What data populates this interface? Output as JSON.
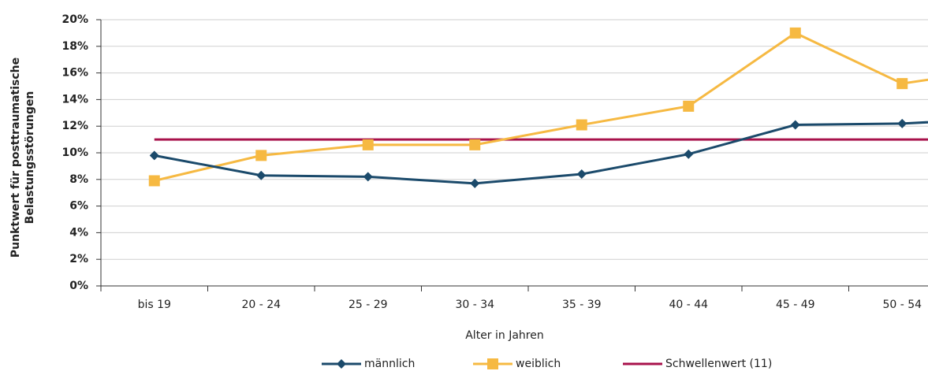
{
  "chart_data": {
    "type": "line",
    "ylabel": [
      "Punktwert für posttraumatische",
      "Belastungsstörungen"
    ],
    "xlabel": "Alter in Jahren",
    "categories": [
      "bis 19",
      "20 - 24",
      "25 - 29",
      "30 - 34",
      "35 - 39",
      "40 - 44",
      "45 - 49",
      "50 - 54",
      null
    ],
    "series": [
      {
        "name": "männlich",
        "color": "#1b4a6b",
        "marker": "diamond",
        "values": [
          9.8,
          8.3,
          8.2,
          7.7,
          8.4,
          9.9,
          12.1,
          12.2,
          12.6
        ]
      },
      {
        "name": "weiblich",
        "color": "#f6b942",
        "marker": "square",
        "values": [
          7.9,
          9.8,
          10.6,
          10.6,
          12.1,
          13.5,
          19.0,
          15.2,
          16.4
        ]
      },
      {
        "name": "Schwellenwert (11)",
        "color": "#a8124b",
        "marker": "none",
        "values": [
          11,
          11,
          11,
          11,
          11,
          11,
          11,
          11,
          11
        ]
      }
    ],
    "ylim": [
      0,
      20
    ],
    "yticks": [
      {
        "value": 0,
        "label": "0%"
      },
      {
        "value": 2,
        "label": "2%"
      },
      {
        "value": 4,
        "label": "4%"
      },
      {
        "value": 6,
        "label": "6%"
      },
      {
        "value": 8,
        "label": "8%"
      },
      {
        "value": 10,
        "label": "10%"
      },
      {
        "value": 12,
        "label": "12%"
      },
      {
        "value": 14,
        "label": "14%"
      },
      {
        "value": 16,
        "label": "16%"
      },
      {
        "value": 18,
        "label": "18%"
      },
      {
        "value": 20,
        "label": "20%"
      }
    ],
    "grid": true,
    "legend": "bottom"
  }
}
